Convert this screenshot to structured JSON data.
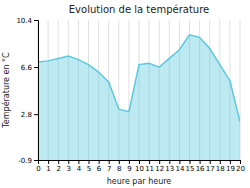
{
  "chart_data": {
    "type": "area",
    "title": "Evolution de la température",
    "xlabel": "heure par heure",
    "ylabel": "Température en °C",
    "x": [
      0,
      1,
      2,
      3,
      4,
      5,
      6,
      7,
      8,
      9,
      10,
      11,
      12,
      13,
      14,
      15,
      16,
      17,
      18,
      19,
      20
    ],
    "values": [
      7.0,
      7.1,
      7.3,
      7.5,
      7.2,
      6.8,
      6.2,
      5.4,
      3.2,
      3.0,
      6.8,
      6.9,
      6.6,
      7.3,
      8.0,
      9.2,
      9.0,
      8.1,
      6.8,
      5.5,
      2.2
    ],
    "color": "#5bc8de",
    "xlim": [
      0,
      20
    ],
    "ylim": [
      -0.9,
      10.4
    ],
    "xticks": [
      0,
      1,
      2,
      3,
      4,
      5,
      6,
      7,
      8,
      9,
      10,
      11,
      12,
      13,
      14,
      15,
      16,
      17,
      18,
      19,
      20
    ],
    "yticks": [
      -0.9,
      2.8,
      6.6,
      10.4
    ],
    "grid": "x"
  }
}
